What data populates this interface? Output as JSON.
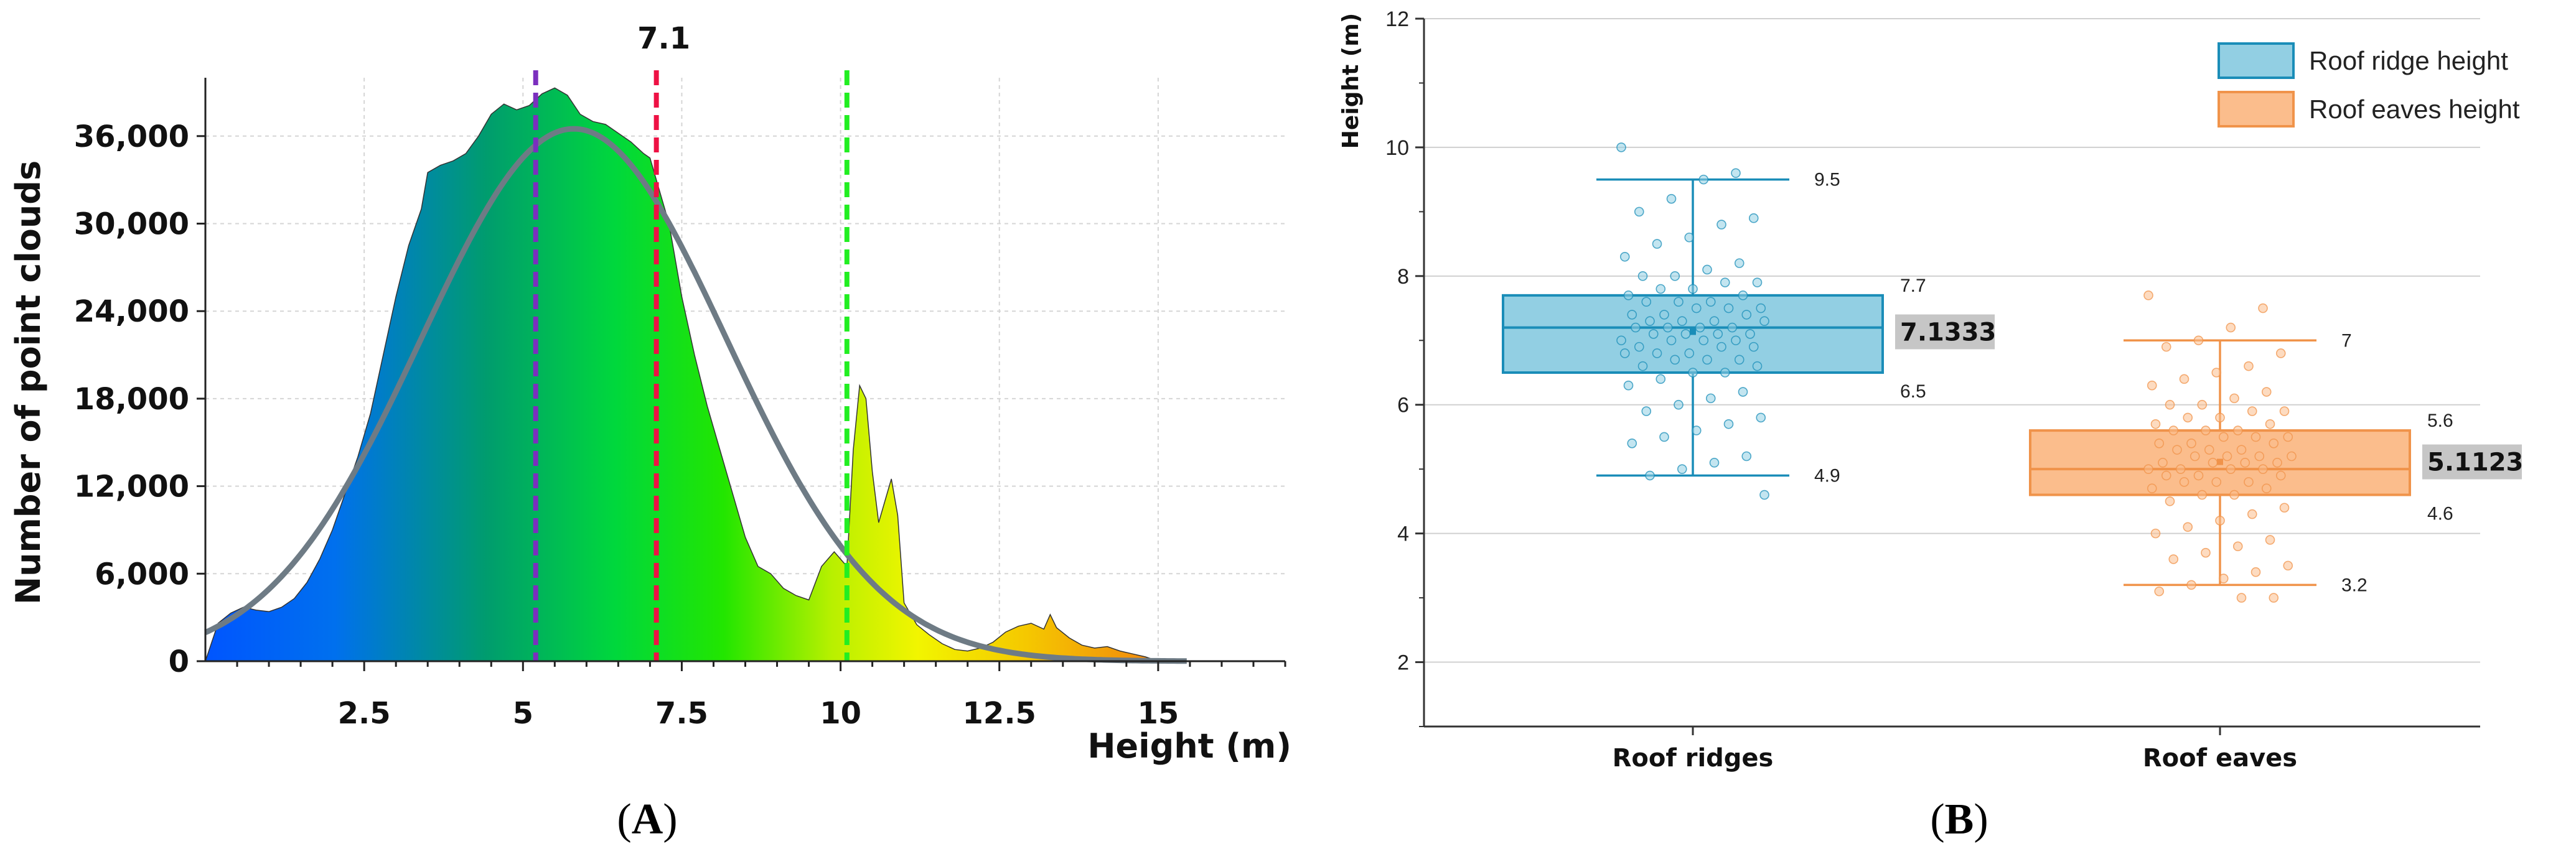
{
  "chart_data": [
    {
      "id": "A",
      "type": "area",
      "panel_label": "A",
      "xlabel": "Height (m)",
      "ylabel": "Number of point clouds",
      "xlim": [
        0,
        17
      ],
      "ylim": [
        0,
        40000
      ],
      "x_ticks": [
        2.5,
        5,
        7.5,
        10,
        12.5,
        15
      ],
      "x_tick_labels": [
        "2.5",
        "5",
        "7.5",
        "10",
        "12.5",
        "15"
      ],
      "y_ticks": [
        0,
        6000,
        12000,
        18000,
        24000,
        30000,
        36000
      ],
      "y_tick_labels": [
        "0",
        "6,000",
        "12,000",
        "18,000",
        "24,000",
        "30,000",
        "36,000"
      ],
      "grid": true,
      "histogram": {
        "x": [
          0.0,
          0.2,
          0.4,
          0.6,
          0.8,
          1.0,
          1.2,
          1.4,
          1.6,
          1.8,
          2.0,
          2.2,
          2.4,
          2.6,
          2.8,
          3.0,
          3.2,
          3.4,
          3.5,
          3.7,
          3.9,
          4.1,
          4.3,
          4.5,
          4.7,
          4.9,
          5.1,
          5.3,
          5.5,
          5.7,
          5.9,
          6.1,
          6.3,
          6.5,
          6.7,
          6.9,
          7.0,
          7.1,
          7.3,
          7.5,
          7.7,
          7.9,
          8.1,
          8.3,
          8.5,
          8.7,
          8.9,
          9.1,
          9.3,
          9.5,
          9.7,
          9.9,
          10.1,
          10.2,
          10.3,
          10.4,
          10.5,
          10.6,
          10.7,
          10.8,
          10.9,
          11.0,
          11.2,
          11.4,
          11.6,
          11.8,
          12.0,
          12.2,
          12.4,
          12.6,
          12.8,
          13.0,
          13.2,
          13.3,
          13.4,
          13.6,
          13.8,
          14.0,
          14.2,
          14.4,
          14.6,
          14.8,
          15.0
        ],
        "y": [
          0,
          2600,
          3300,
          3700,
          3500,
          3400,
          3700,
          4300,
          5400,
          7000,
          9000,
          11500,
          14000,
          17000,
          21000,
          25000,
          28500,
          31000,
          33500,
          34000,
          34300,
          34800,
          36000,
          37500,
          38200,
          37800,
          38100,
          38900,
          39300,
          38800,
          37500,
          37000,
          36800,
          36200,
          35600,
          34800,
          34500,
          33000,
          30000,
          25000,
          21000,
          17500,
          14500,
          11500,
          8500,
          6500,
          6000,
          5000,
          4500,
          4200,
          6500,
          7500,
          6500,
          14500,
          18900,
          18000,
          13000,
          9500,
          11000,
          12500,
          10000,
          4000,
          2500,
          1800,
          1200,
          800,
          700,
          900,
          1300,
          2000,
          2400,
          2600,
          2200,
          3200,
          2300,
          1600,
          1100,
          900,
          1000,
          700,
          500,
          300,
          0
        ]
      },
      "fit_curve": {
        "name": "normal fit",
        "mean": 5.8,
        "sd": 2.4,
        "peak": 36500
      },
      "vlines": [
        {
          "x": 5.2,
          "color": "#7b2fbe",
          "style": "dashed"
        },
        {
          "x": 7.1,
          "color": "#ee1144",
          "style": "dashed",
          "label": "7.1"
        },
        {
          "x": 10.1,
          "color": "#22ee22",
          "style": "dashed"
        }
      ]
    },
    {
      "id": "B",
      "type": "box",
      "panel_label": "B",
      "ylabel": "Height (m)",
      "ylim": [
        1,
        12
      ],
      "y_ticks": [
        2,
        4,
        6,
        8,
        10,
        12
      ],
      "y_tick_labels": [
        "2",
        "4",
        "6",
        "8",
        "10",
        "12"
      ],
      "grid": true,
      "legend_position": "top-right",
      "series": [
        {
          "name": "Roof ridge height",
          "category": "Roof ridges",
          "whisker_low": 4.9,
          "q1": 6.5,
          "median": 7.2,
          "q3": 7.7,
          "whisker_high": 9.5,
          "mean": 7.1333,
          "labels": {
            "whisker_high": "9.5",
            "q3": "7.7",
            "mean": "7.1333",
            "q1": "6.5",
            "whisker_low": "4.9"
          },
          "fill": "#92cfe3",
          "stroke": "#1a8db8",
          "points": [
            10.0,
            9.6,
            9.5,
            9.2,
            9.0,
            8.9,
            8.8,
            8.6,
            8.5,
            8.3,
            8.2,
            8.1,
            8.0,
            8.0,
            7.9,
            7.9,
            7.8,
            7.8,
            7.7,
            7.7,
            7.6,
            7.6,
            7.6,
            7.5,
            7.5,
            7.5,
            7.4,
            7.4,
            7.4,
            7.3,
            7.3,
            7.3,
            7.3,
            7.2,
            7.2,
            7.2,
            7.2,
            7.1,
            7.1,
            7.1,
            7.1,
            7.0,
            7.0,
            7.0,
            7.0,
            6.9,
            6.9,
            6.9,
            6.8,
            6.8,
            6.8,
            6.7,
            6.7,
            6.7,
            6.6,
            6.6,
            6.5,
            6.5,
            6.4,
            6.3,
            6.2,
            6.1,
            6.0,
            5.9,
            5.8,
            5.7,
            5.6,
            5.5,
            5.4,
            5.2,
            5.1,
            5.0,
            4.9,
            4.6
          ]
        },
        {
          "name": "Roof eaves height",
          "category": "Roof eaves",
          "whisker_low": 3.2,
          "q1": 4.6,
          "median": 5.0,
          "q3": 5.6,
          "whisker_high": 7.0,
          "mean": 5.1123,
          "labels": {
            "whisker_high": "7",
            "q3": "5.6",
            "mean": "5.1123",
            "q1": "4.6",
            "whisker_low": "3.2"
          },
          "fill": "#fbbd8c",
          "stroke": "#f0934a",
          "points": [
            7.7,
            7.5,
            7.2,
            7.0,
            6.9,
            6.8,
            6.6,
            6.5,
            6.4,
            6.3,
            6.2,
            6.1,
            6.0,
            6.0,
            5.9,
            5.9,
            5.8,
            5.8,
            5.7,
            5.7,
            5.6,
            5.6,
            5.6,
            5.5,
            5.5,
            5.5,
            5.4,
            5.4,
            5.4,
            5.3,
            5.3,
            5.3,
            5.2,
            5.2,
            5.2,
            5.2,
            5.1,
            5.1,
            5.1,
            5.1,
            5.0,
            5.0,
            5.0,
            5.0,
            4.9,
            4.9,
            4.9,
            4.8,
            4.8,
            4.8,
            4.7,
            4.7,
            4.6,
            4.6,
            4.5,
            4.4,
            4.3,
            4.2,
            4.1,
            4.0,
            3.9,
            3.8,
            3.7,
            3.6,
            3.5,
            3.4,
            3.3,
            3.2,
            3.1,
            3.0,
            3.0
          ]
        }
      ]
    }
  ]
}
